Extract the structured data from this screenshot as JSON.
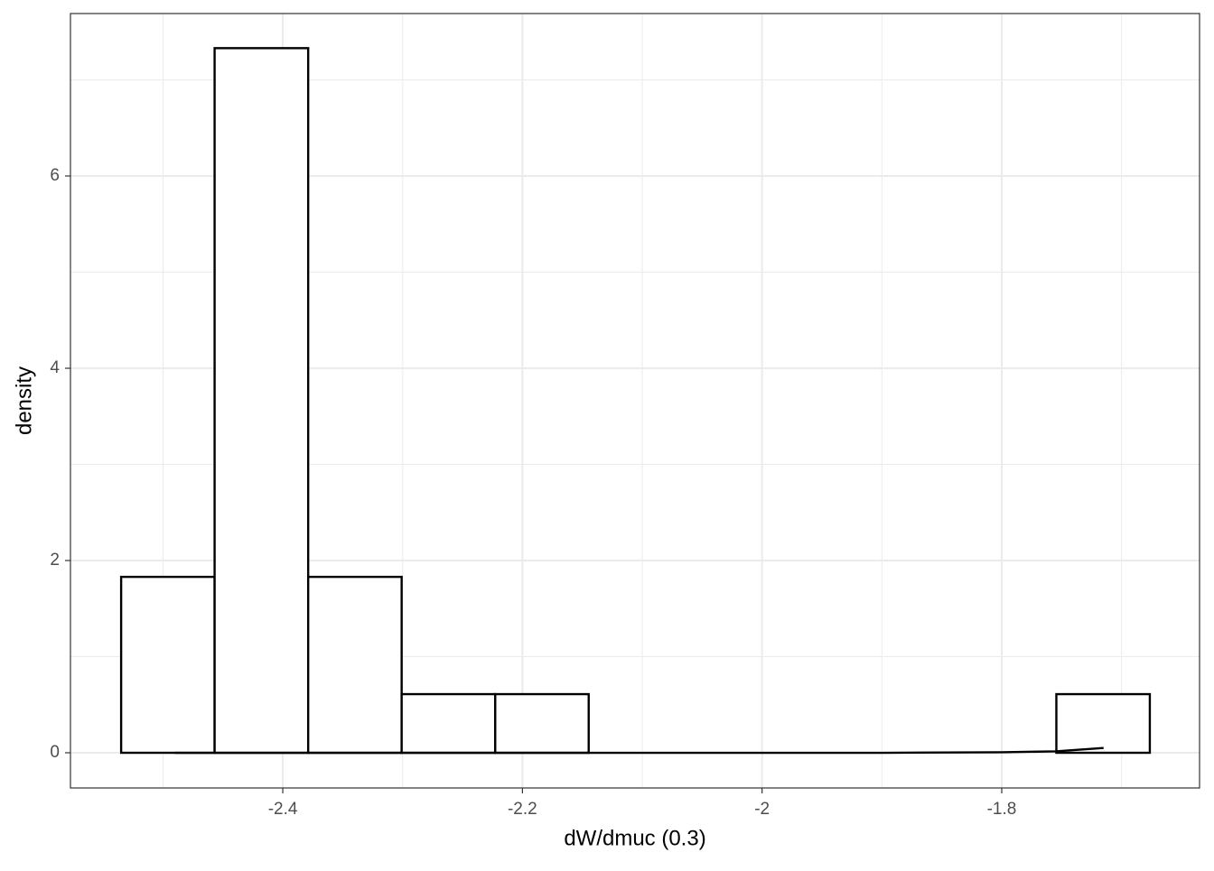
{
  "chart_data": {
    "type": "histogram",
    "x_label": "dW/dmuc (0.3)",
    "y_label": "density",
    "bins": [
      -2.5349,
      -2.4569,
      -2.3788,
      -2.3008,
      -2.2227,
      -2.1447,
      -2.0666,
      -1.9886,
      -1.9105,
      -1.8325,
      -1.7544,
      -1.6764
    ],
    "values": [
      1.83,
      7.33,
      1.83,
      0.61,
      0.61,
      0,
      0,
      0,
      0,
      0,
      0.61
    ],
    "fill": "#ffffff",
    "color": "#000000",
    "density_line": {
      "x": [
        -2.49,
        -2.3,
        -2.1,
        -1.9,
        -1.8,
        -1.755,
        -1.715
      ],
      "y": [
        0,
        0,
        0,
        0,
        0.005,
        0.015,
        0.05
      ],
      "color": "#000000"
    },
    "xlim": [
      -2.5772,
      -1.6349
    ],
    "xticks": [
      -2.4,
      -2.2,
      -2.0,
      -1.8
    ],
    "ylim": [
      -0.366,
      7.69
    ],
    "yticks": [
      0,
      2,
      4,
      6
    ],
    "grid": true
  }
}
